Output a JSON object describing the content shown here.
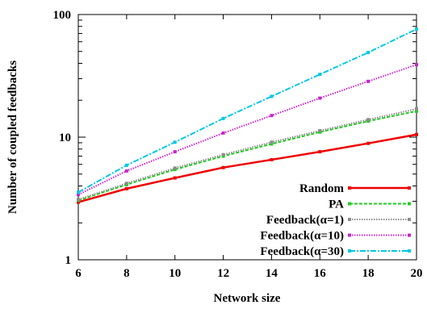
{
  "chart_data": {
    "type": "line",
    "title": "",
    "xlabel": "Network size",
    "ylabel": "Number of coupled feedbacks",
    "xlim": [
      6,
      20
    ],
    "ylim": [
      1,
      100
    ],
    "yscale": "log",
    "grid": false,
    "legend_position": "bottom-right",
    "x": [
      6,
      8,
      10,
      12,
      14,
      16,
      18,
      20
    ],
    "x_tick_labels": [
      "6",
      "8",
      "10",
      "12",
      "14",
      "16",
      "18",
      "20"
    ],
    "y_tick_values": [
      1,
      10,
      100
    ],
    "y_tick_labels": [
      "1",
      "10",
      "100"
    ],
    "series": [
      {
        "name": "Random",
        "color": "#ee0000",
        "style": "solid",
        "values": [
          2.95,
          3.8,
          4.65,
          5.65,
          6.55,
          7.6,
          8.9,
          10.5
        ]
      },
      {
        "name": "PA",
        "color": "#22cc22",
        "style": "dashed",
        "values": [
          3.05,
          4.1,
          5.45,
          7.0,
          8.8,
          11.0,
          13.5,
          16.3
        ]
      },
      {
        "name": "Feedback(α=1)",
        "color": "#8c8c8c",
        "style": "dotted",
        "values": [
          3.1,
          4.2,
          5.6,
          7.2,
          9.1,
          11.3,
          13.9,
          17.0
        ]
      },
      {
        "name": "Feedback(α=10)",
        "color": "#cc22cc",
        "style": "dotted",
        "values": [
          3.4,
          5.3,
          7.6,
          10.8,
          15.0,
          20.8,
          28.5,
          39.0
        ]
      },
      {
        "name": "Feedback(α=30)",
        "color": "#00c8e6",
        "style": "dashdot",
        "values": [
          3.55,
          5.9,
          9.1,
          14.2,
          21.5,
          32.5,
          49.0,
          76.0
        ]
      }
    ]
  }
}
